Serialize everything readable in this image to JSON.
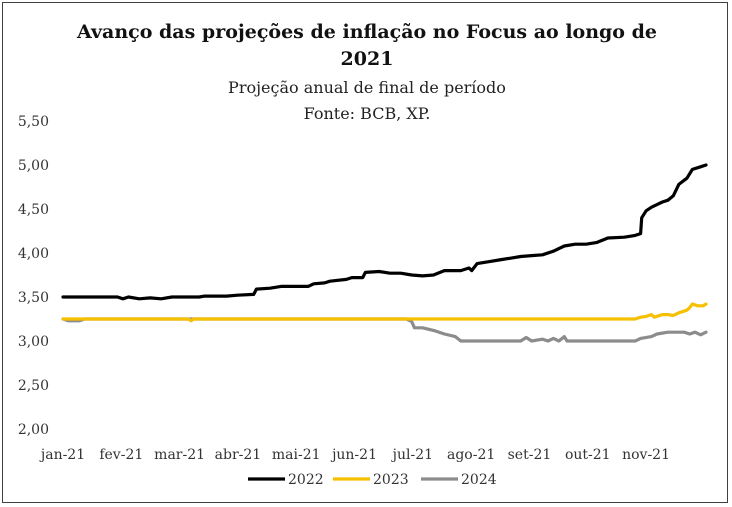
{
  "chart_data": {
    "type": "line",
    "title": "Avanço das projeções de inflação no Focus ao longo de 2021",
    "title_lines": [
      "Avanço das projeções de inflação no Focus ao longo de",
      "2021"
    ],
    "subtitle_lines": [
      "Projeção anual de final de período",
      "Fonte: BCB, XP."
    ],
    "xlabel": "",
    "ylabel": "",
    "x_tick_labels": [
      "jan-21",
      "fev-21",
      "mar-21",
      "abr-21",
      "mai-21",
      "jun-21",
      "jul-21",
      "ago-21",
      "set-21",
      "out-21",
      "nov-21"
    ],
    "y_tick_labels": [
      "2,00",
      "2,50",
      "3,00",
      "3,50",
      "4,00",
      "4,50",
      "5,00",
      "5,50"
    ],
    "ylim": [
      2.0,
      5.5
    ],
    "grid": "none",
    "legend_position": "bottom",
    "series": [
      {
        "name": "2022",
        "color": "#000000",
        "points": [
          [
            0,
            3.5
          ],
          [
            1.0,
            3.5
          ],
          [
            1.1,
            3.48
          ],
          [
            1.2,
            3.5
          ],
          [
            1.4,
            3.48
          ],
          [
            1.6,
            3.49
          ],
          [
            1.8,
            3.48
          ],
          [
            2.0,
            3.5
          ],
          [
            2.5,
            3.5
          ],
          [
            2.6,
            3.51
          ],
          [
            3.0,
            3.51
          ],
          [
            3.2,
            3.52
          ],
          [
            3.5,
            3.53
          ],
          [
            3.55,
            3.59
          ],
          [
            3.8,
            3.6
          ],
          [
            4.0,
            3.62
          ],
          [
            4.5,
            3.62
          ],
          [
            4.6,
            3.65
          ],
          [
            4.8,
            3.66
          ],
          [
            4.9,
            3.68
          ],
          [
            5.2,
            3.7
          ],
          [
            5.3,
            3.72
          ],
          [
            5.5,
            3.72
          ],
          [
            5.55,
            3.78
          ],
          [
            5.8,
            3.79
          ],
          [
            6.0,
            3.77
          ],
          [
            6.2,
            3.77
          ],
          [
            6.4,
            3.75
          ],
          [
            6.6,
            3.74
          ],
          [
            6.8,
            3.75
          ],
          [
            7.0,
            3.8
          ],
          [
            7.3,
            3.8
          ],
          [
            7.45,
            3.83
          ],
          [
            7.5,
            3.8
          ],
          [
            7.6,
            3.88
          ],
          [
            7.8,
            3.9
          ],
          [
            8.0,
            3.92
          ],
          [
            8.2,
            3.94
          ],
          [
            8.4,
            3.96
          ],
          [
            8.6,
            3.97
          ],
          [
            8.8,
            3.98
          ],
          [
            9.0,
            4.02
          ],
          [
            9.2,
            4.08
          ],
          [
            9.4,
            4.1
          ],
          [
            9.6,
            4.1
          ],
          [
            9.8,
            4.12
          ],
          [
            10.0,
            4.17
          ],
          [
            10.3,
            4.18
          ],
          [
            10.5,
            4.2
          ],
          [
            10.6,
            4.22
          ],
          [
            10.62,
            4.4
          ],
          [
            10.7,
            4.48
          ],
          [
            10.8,
            4.52
          ],
          [
            10.9,
            4.55
          ],
          [
            11.0,
            4.58
          ],
          [
            11.1,
            4.6
          ],
          [
            11.2,
            4.65
          ],
          [
            11.3,
            4.78
          ],
          [
            11.45,
            4.85
          ],
          [
            11.55,
            4.95
          ],
          [
            11.7,
            4.98
          ],
          [
            11.8,
            5.0
          ]
        ]
      },
      {
        "name": "2023",
        "color": "#f5c000",
        "points": [
          [
            0,
            3.25
          ],
          [
            2.3,
            3.25
          ],
          [
            2.35,
            3.23
          ],
          [
            2.4,
            3.25
          ],
          [
            10.5,
            3.25
          ],
          [
            10.6,
            3.27
          ],
          [
            10.7,
            3.28
          ],
          [
            10.8,
            3.3
          ],
          [
            10.85,
            3.27
          ],
          [
            11.0,
            3.3
          ],
          [
            11.1,
            3.3
          ],
          [
            11.2,
            3.29
          ],
          [
            11.3,
            3.32
          ],
          [
            11.45,
            3.35
          ],
          [
            11.5,
            3.38
          ],
          [
            11.55,
            3.42
          ],
          [
            11.65,
            3.4
          ],
          [
            11.75,
            3.4
          ],
          [
            11.8,
            3.42
          ]
        ]
      },
      {
        "name": "2024",
        "color": "#8c8c8c",
        "points": [
          [
            0,
            3.25
          ],
          [
            0.1,
            3.23
          ],
          [
            0.3,
            3.23
          ],
          [
            0.4,
            3.25
          ],
          [
            6.3,
            3.25
          ],
          [
            6.4,
            3.22
          ],
          [
            6.45,
            3.15
          ],
          [
            6.6,
            3.15
          ],
          [
            6.8,
            3.12
          ],
          [
            7.0,
            3.08
          ],
          [
            7.2,
            3.05
          ],
          [
            7.3,
            3.0
          ],
          [
            8.4,
            3.0
          ],
          [
            8.5,
            3.04
          ],
          [
            8.6,
            3.0
          ],
          [
            8.8,
            3.02
          ],
          [
            8.9,
            3.0
          ],
          [
            9.0,
            3.03
          ],
          [
            9.1,
            3.0
          ],
          [
            9.2,
            3.05
          ],
          [
            9.25,
            3.0
          ],
          [
            10.5,
            3.0
          ],
          [
            10.6,
            3.03
          ],
          [
            10.8,
            3.05
          ],
          [
            10.9,
            3.08
          ],
          [
            11.1,
            3.1
          ],
          [
            11.4,
            3.1
          ],
          [
            11.5,
            3.08
          ],
          [
            11.6,
            3.1
          ],
          [
            11.7,
            3.07
          ],
          [
            11.8,
            3.1
          ]
        ]
      }
    ]
  }
}
